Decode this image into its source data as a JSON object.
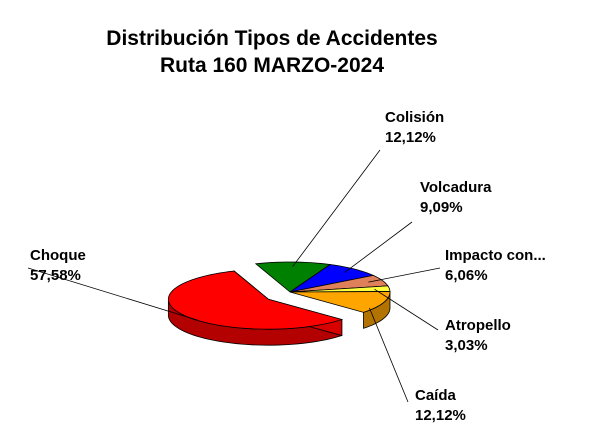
{
  "chart_data": {
    "type": "pie3d",
    "title": "Distribución Tipos de Accidentes",
    "subtitle": "Ruta 160 MARZO-2024",
    "categories": [
      "Colisión",
      "Volcadura",
      "Impacto  con...",
      "Atropello",
      "Caída",
      "Choque"
    ],
    "values": [
      12.12,
      9.09,
      6.06,
      3.03,
      12.12,
      57.58
    ],
    "value_labels": [
      "12,12%",
      "9,09%",
      "6,06%",
      "3,03%",
      "12,12%",
      "57,58%"
    ],
    "colors": [
      "#008000",
      "#0000ff",
      "#e0805a",
      "#ffff40",
      "#ffa500",
      "#ff0000"
    ],
    "exploded": [
      5
    ]
  }
}
